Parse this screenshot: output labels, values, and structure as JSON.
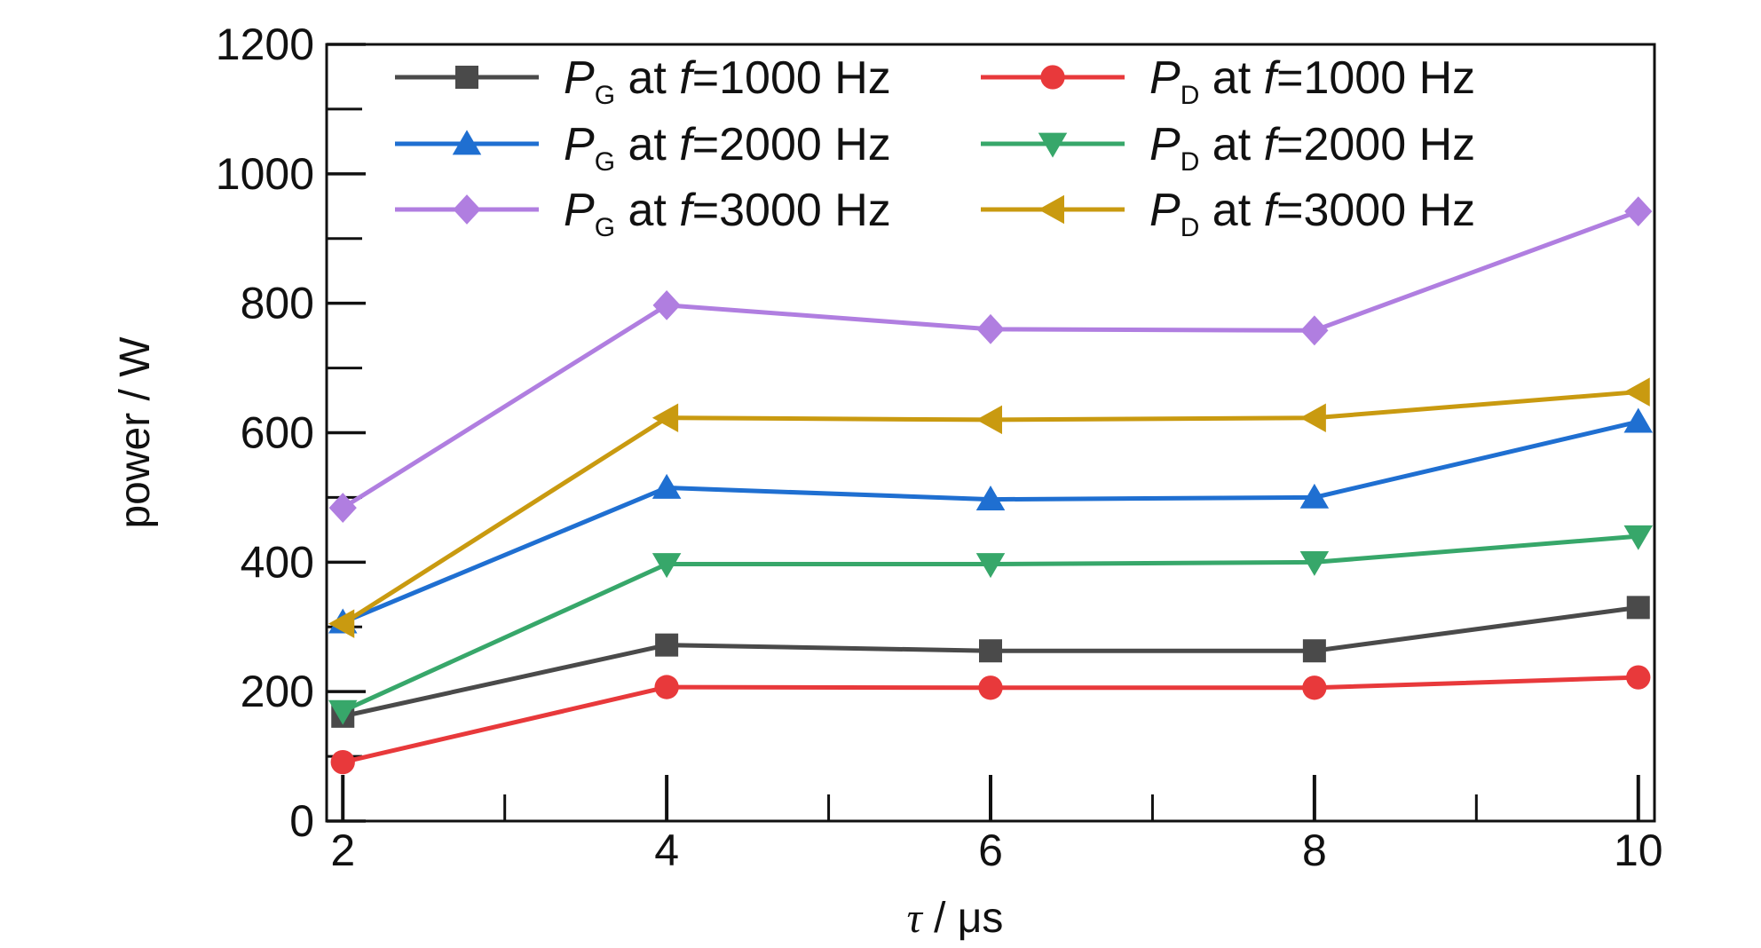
{
  "chart_data": {
    "type": "line",
    "xlabel": "τ / μs",
    "xlabel_parts": {
      "symbol": "τ",
      "rest": " / μs"
    },
    "ylabel": "power / W",
    "xlim": [
      1.9,
      10.1
    ],
    "ylim": [
      0,
      1200
    ],
    "xticks": [
      2,
      4,
      6,
      8,
      10
    ],
    "xminor": [
      3,
      5,
      7,
      9
    ],
    "yticks": [
      0,
      200,
      400,
      600,
      800,
      1000,
      1200
    ],
    "yminor": [
      100,
      300,
      500,
      700,
      900,
      1100
    ],
    "grid": false,
    "legend_position": "top",
    "x": [
      2,
      4,
      6,
      8,
      10
    ],
    "series": [
      {
        "name": "PG at f=1000 Hz",
        "symbol": "P",
        "sub": "G",
        "label_mid": " at ",
        "freq_symbol": "f",
        "label_end": "=1000 Hz",
        "color": "#4a4a4a",
        "marker": "square",
        "values": [
          162,
          272,
          263,
          263,
          330
        ]
      },
      {
        "name": "PD at f=1000 Hz",
        "symbol": "P",
        "sub": "D",
        "label_mid": " at ",
        "freq_symbol": "f",
        "label_end": "=1000 Hz",
        "color": "#e8393b",
        "marker": "circle",
        "values": [
          91,
          207,
          206,
          206,
          222
        ]
      },
      {
        "name": "PG at f=2000 Hz",
        "symbol": "P",
        "sub": "G",
        "label_mid": " at ",
        "freq_symbol": "f",
        "label_end": "=2000 Hz",
        "color": "#1f6fd1",
        "marker": "triangle-up",
        "values": [
          307,
          515,
          497,
          500,
          617
        ]
      },
      {
        "name": "PD at f=2000 Hz",
        "symbol": "P",
        "sub": "D",
        "label_mid": " at ",
        "freq_symbol": "f",
        "label_end": "=2000 Hz",
        "color": "#37a76a",
        "marker": "triangle-down",
        "values": [
          170,
          397,
          397,
          400,
          440
        ]
      },
      {
        "name": "PG at f=3000 Hz",
        "symbol": "P",
        "sub": "G",
        "label_mid": " at ",
        "freq_symbol": "f",
        "label_end": "=3000 Hz",
        "color": "#b07ee0",
        "marker": "diamond",
        "values": [
          484,
          797,
          760,
          758,
          942
        ]
      },
      {
        "name": "PD at f=3000 Hz",
        "symbol": "P",
        "sub": "D",
        "label_mid": " at ",
        "freq_symbol": "f",
        "label_end": "=3000 Hz",
        "color": "#c99a10",
        "marker": "triangle-left",
        "values": [
          305,
          623,
          620,
          623,
          663
        ]
      }
    ]
  }
}
